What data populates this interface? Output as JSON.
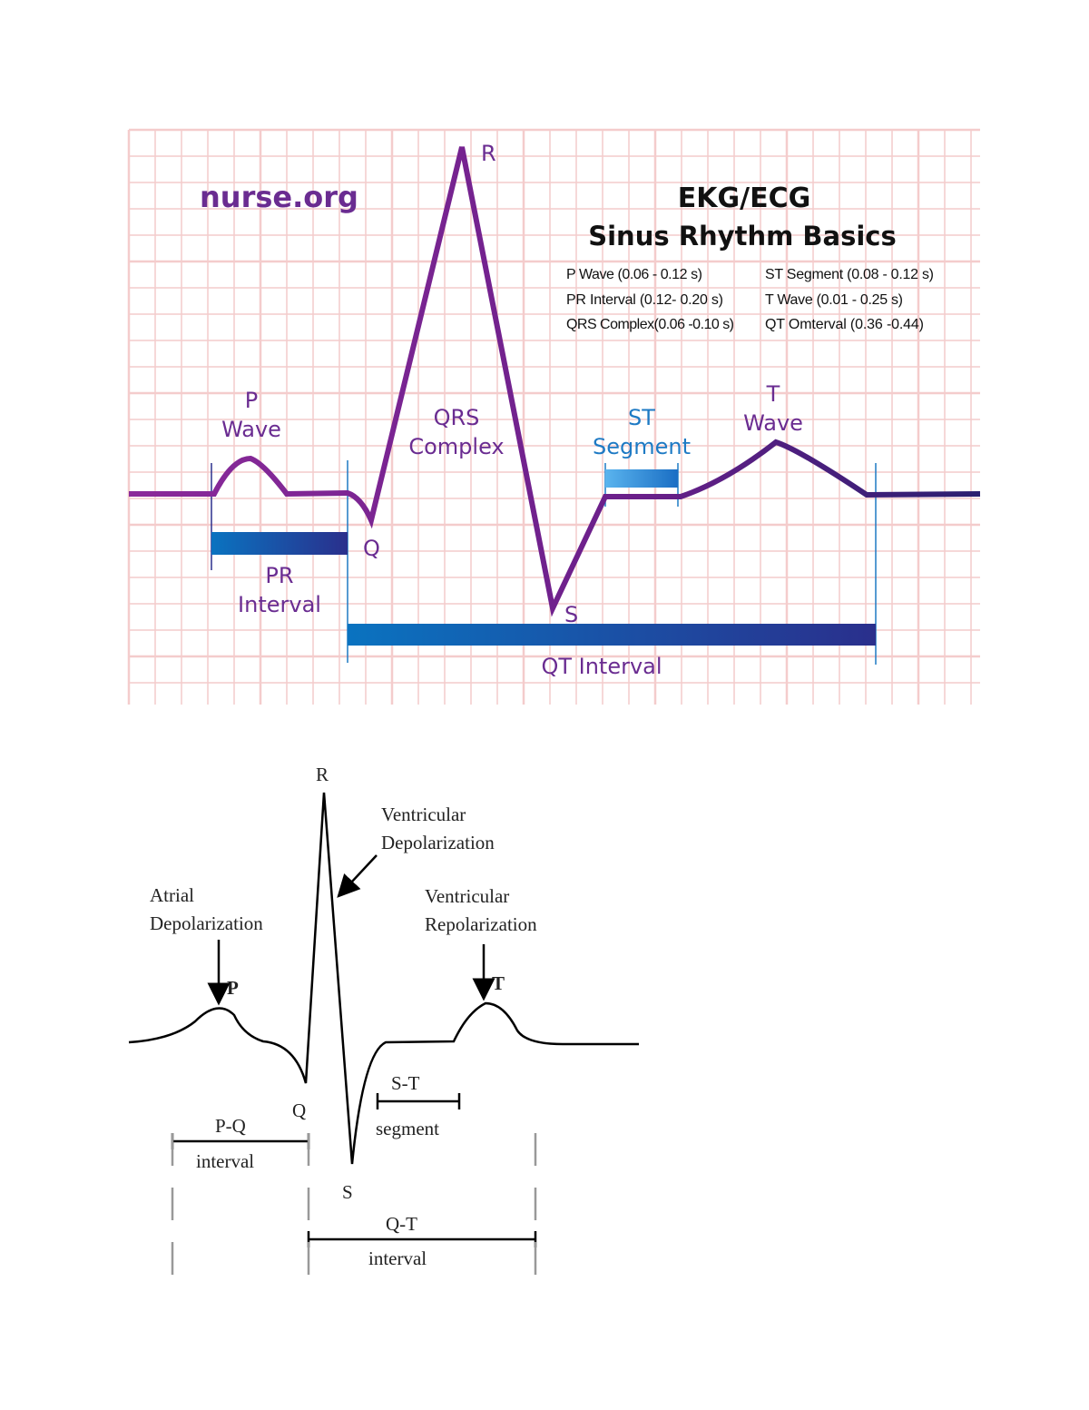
{
  "top_diagram": {
    "logo": "nurse.org",
    "title_line1": "EKG/ECG",
    "title_line2": "Sinus Rhythm Basics",
    "legend_left": [
      "P Wave (0.06 - 0.12 s)",
      "PR Interval (0.12- 0.20 s)",
      "QRS Complex(0.06 -0.10 s)"
    ],
    "legend_right": [
      "ST Segment (0.08 - 0.12 s)",
      "T Wave (0.01 - 0.25 s)",
      "QT Omterval (0.36 -0.44)"
    ],
    "labels": {
      "r": "R",
      "q": "Q",
      "s": "S",
      "p_wave_1": "P",
      "p_wave_2": "Wave",
      "qrs_1": "QRS",
      "qrs_2": "Complex",
      "st_1": "ST",
      "st_2": "Segment",
      "t_1": "T",
      "t_2": "Wave",
      "pr_1": "PR",
      "pr_2": "Interval",
      "qt": "QT Interval"
    },
    "colors": {
      "trace": "#6a1f8a",
      "grid": "#f4cccc",
      "bar_start": "#0a73c0",
      "bar_end": "#2a2f8c",
      "text": "#6a2c91",
      "st_text": "#1e7ac4"
    }
  },
  "bottom_diagram": {
    "labels": {
      "r": "R",
      "p": "P",
      "q": "Q",
      "s": "S",
      "t": "T",
      "vent_dep_1": "Ventricular",
      "vent_dep_2": "Depolarization",
      "atrial_dep_1": "Atrial",
      "atrial_dep_2": "Depolarization",
      "vent_rep_1": "Ventricular",
      "vent_rep_2": "Repolarization",
      "st_1": "S-T",
      "st_2": "segment",
      "pq_1": "P-Q",
      "pq_2": "interval",
      "qt_1": "Q-T",
      "qt_2": "interval"
    }
  }
}
